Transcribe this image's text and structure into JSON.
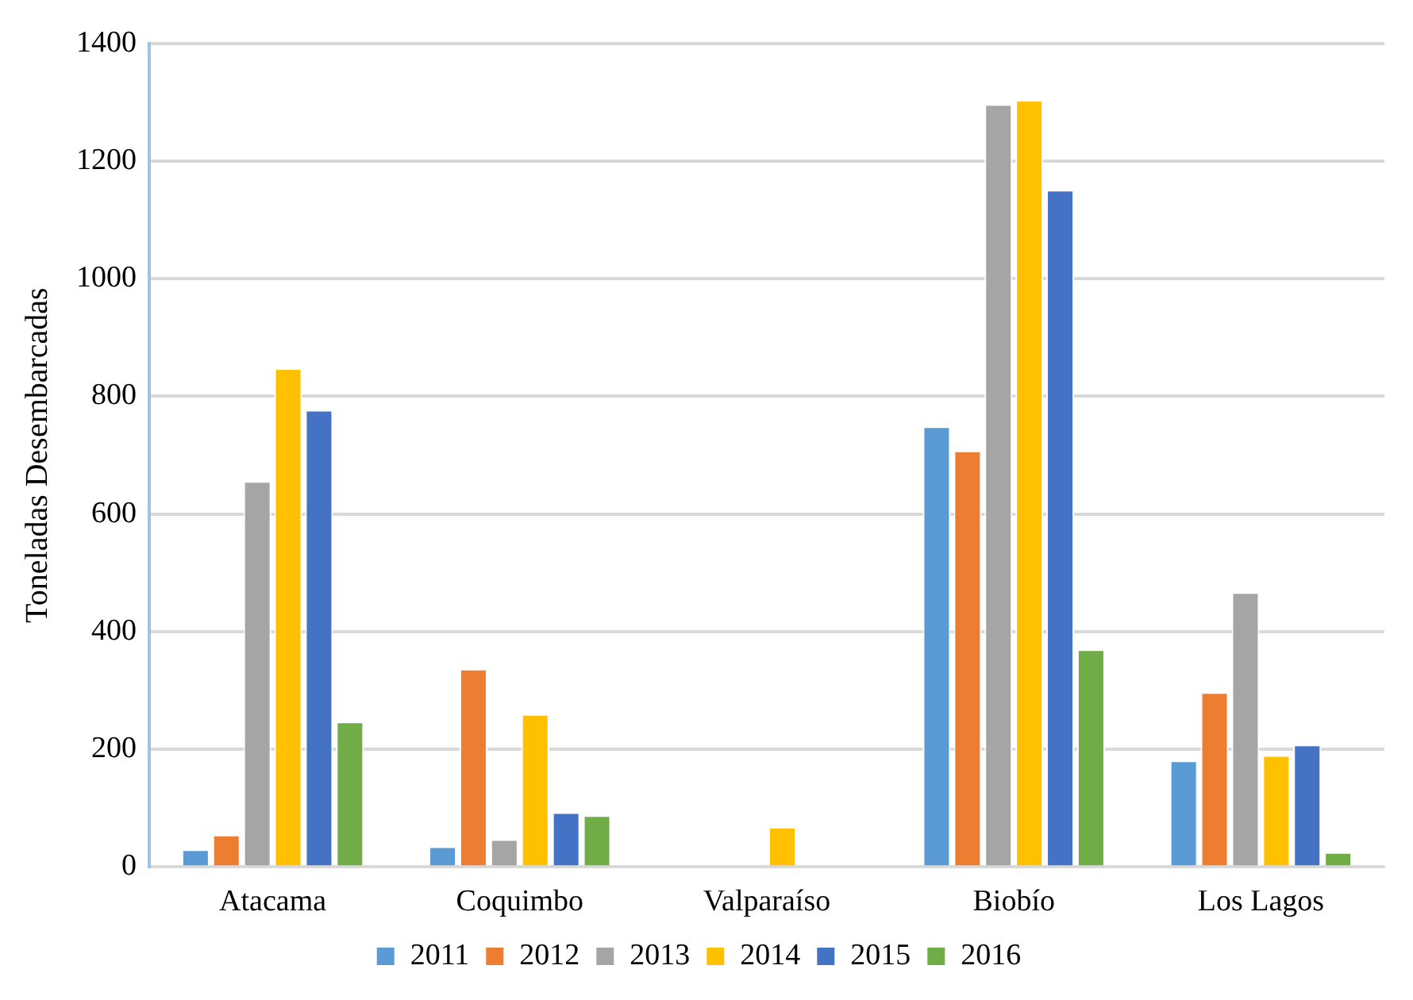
{
  "chart_data": {
    "type": "bar",
    "ylabel": "Toneladas Desembarcadas",
    "categories": [
      "Atacama",
      "Coquimbo",
      "Valparaíso",
      "Biobío",
      "Los Lagos"
    ],
    "series": [
      {
        "name": "2011",
        "color": "#5b9bd5",
        "values": [
          30,
          35,
          null,
          749,
          181
        ]
      },
      {
        "name": "2012",
        "color": "#ed7d31",
        "values": [
          55,
          337,
          null,
          708,
          297
        ]
      },
      {
        "name": "2013",
        "color": "#a5a5a5",
        "values": [
          656,
          47,
          null,
          1297,
          467
        ]
      },
      {
        "name": "2014",
        "color": "#ffc000",
        "values": [
          848,
          260,
          68,
          1304,
          190
        ]
      },
      {
        "name": "2015",
        "color": "#4472c4",
        "values": [
          777,
          93,
          null,
          1151,
          208
        ]
      },
      {
        "name": "2016",
        "color": "#70ad47",
        "values": [
          247,
          88,
          null,
          370,
          25
        ]
      }
    ],
    "ylim": [
      0,
      1400
    ],
    "yticks": [
      0,
      200,
      400,
      600,
      800,
      1000,
      1200,
      1400
    ],
    "grid": "y",
    "legend": "bottom"
  }
}
